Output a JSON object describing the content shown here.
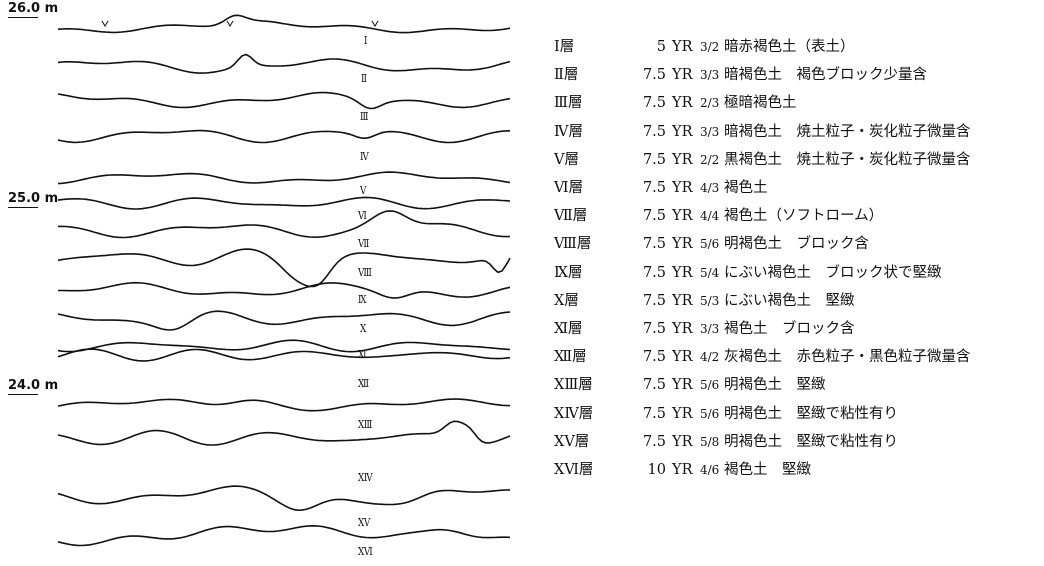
{
  "section": {
    "elevations": [
      "26.0 m",
      "25.0 m",
      "24.0 m"
    ],
    "layer_labels": [
      "Ⅰ",
      "Ⅱ",
      "Ⅲ",
      "Ⅳ",
      "Ⅴ",
      "Ⅵ",
      "Ⅶ",
      "Ⅷ",
      "Ⅸ",
      "Ⅹ",
      "Ⅺ",
      "Ⅻ",
      "ⅩⅢ",
      "ⅩⅣ",
      "ⅩⅤ",
      "ⅩⅥ"
    ]
  },
  "legend": {
    "rows": [
      {
        "layer": "Ⅰ層",
        "hue": "5",
        "yr": "YR",
        "ratio": "3/2",
        "desc": "暗赤褐色土（表土）"
      },
      {
        "layer": "Ⅱ層",
        "hue": "7.5",
        "yr": "YR",
        "ratio": "3/3",
        "desc": "暗褐色土　褐色ブロック少量含"
      },
      {
        "layer": "Ⅲ層",
        "hue": "7.5",
        "yr": "YR",
        "ratio": "2/3",
        "desc": "極暗褐色土"
      },
      {
        "layer": "Ⅳ層",
        "hue": "7.5",
        "yr": "YR",
        "ratio": "3/3",
        "desc": "暗褐色土　焼土粒子・炭化粒子微量含"
      },
      {
        "layer": "Ⅴ層",
        "hue": "7.5",
        "yr": "YR",
        "ratio": "2/2",
        "desc": "黒褐色土　焼土粒子・炭化粒子微量含"
      },
      {
        "layer": "Ⅵ層",
        "hue": "7.5",
        "yr": "YR",
        "ratio": "4/3",
        "desc": "褐色土"
      },
      {
        "layer": "Ⅶ層",
        "hue": "7.5",
        "yr": "YR",
        "ratio": "4/4",
        "desc": "褐色土（ソフトローム）"
      },
      {
        "layer": "Ⅷ層",
        "hue": "7.5",
        "yr": "YR",
        "ratio": "5/6",
        "desc": "明褐色土　ブロック含"
      },
      {
        "layer": "Ⅸ層",
        "hue": "7.5",
        "yr": "YR",
        "ratio": "5/4",
        "desc": "にぶい褐色土　ブロック状で堅緻"
      },
      {
        "layer": "Ⅹ層",
        "hue": "7.5",
        "yr": "YR",
        "ratio": "5/3",
        "desc": "にぶい褐色土　堅緻"
      },
      {
        "layer": "Ⅺ層",
        "hue": "7.5",
        "yr": "YR",
        "ratio": "3/3",
        "desc": "褐色土　ブロック含"
      },
      {
        "layer": "Ⅻ層",
        "hue": "7.5",
        "yr": "YR",
        "ratio": "4/2",
        "desc": "灰褐色土　赤色粒子・黒色粒子微量含"
      },
      {
        "layer": "ⅩⅢ層",
        "hue": "7.5",
        "yr": "YR",
        "ratio": "5/6",
        "desc": "明褐色土　堅緻"
      },
      {
        "layer": "ⅩⅣ層",
        "hue": "7.5",
        "yr": "YR",
        "ratio": "5/6",
        "desc": "明褐色土　堅緻で粘性有り"
      },
      {
        "layer": "ⅩⅤ層",
        "hue": "7.5",
        "yr": "YR",
        "ratio": "5/8",
        "desc": "明褐色土　堅緻で粘性有り"
      },
      {
        "layer": "ⅩⅥ層",
        "hue": "10",
        "yr": "YR",
        "ratio": "4/6",
        "desc": "褐色土　堅緻"
      }
    ]
  }
}
